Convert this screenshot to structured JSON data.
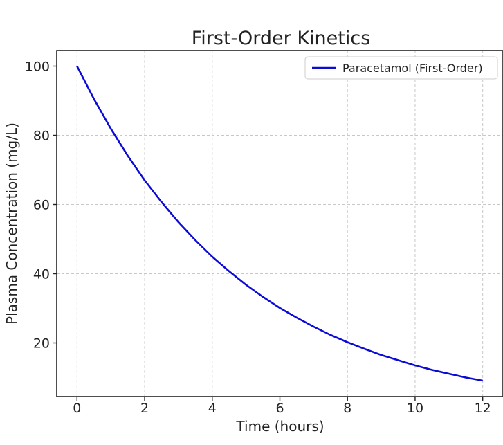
{
  "chart_data": {
    "type": "line",
    "title": "First-Order Kinetics",
    "xlabel": "Time (hours)",
    "ylabel": "Plasma Concentration (mg/L)",
    "xlim": [
      -0.6,
      12.6
    ],
    "ylim": [
      4.5,
      104.5
    ],
    "xticks": [
      0,
      2,
      4,
      6,
      8,
      10,
      12
    ],
    "yticks": [
      20,
      40,
      60,
      80,
      100
    ],
    "grid": true,
    "legend_position": "top-right",
    "series": [
      {
        "name": "Paracetamol (First-Order)",
        "color": "#0b0bd4",
        "x": [
          0,
          0.5,
          1,
          1.5,
          2,
          2.5,
          3,
          3.5,
          4,
          4.5,
          5,
          5.5,
          6,
          6.5,
          7,
          7.5,
          8,
          8.5,
          9,
          9.5,
          10,
          10.5,
          11,
          11.5,
          12
        ],
        "y": [
          100,
          90.5,
          81.9,
          74.1,
          67.0,
          60.7,
          54.9,
          49.7,
          44.9,
          40.7,
          36.8,
          33.3,
          30.1,
          27.3,
          24.7,
          22.3,
          20.2,
          18.3,
          16.5,
          15.0,
          13.5,
          12.2,
          11.1,
          10.0,
          9.1
        ]
      }
    ]
  }
}
